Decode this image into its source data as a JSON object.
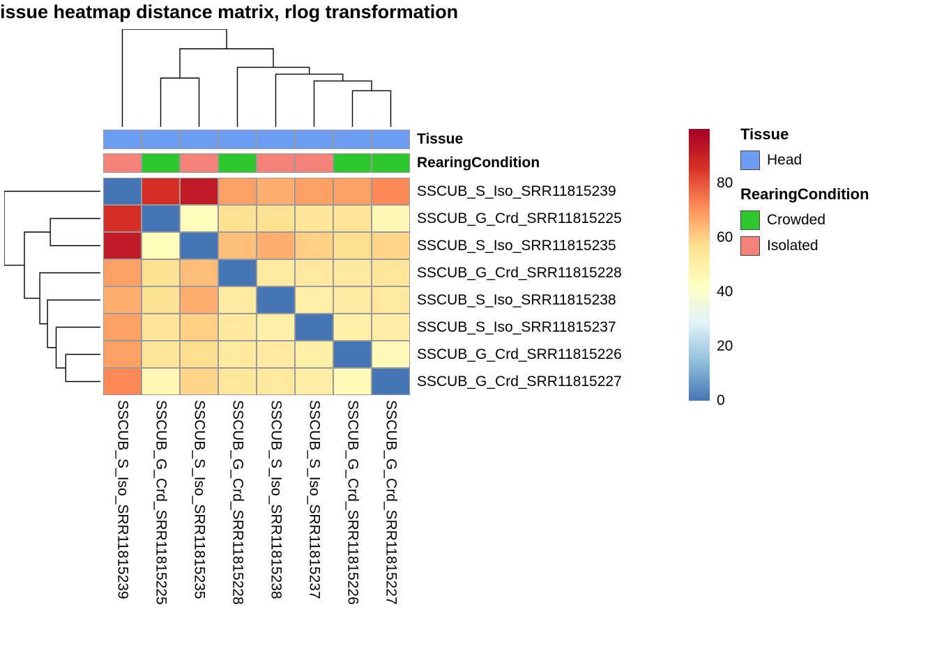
{
  "title": "issue heatmap distance matrix, rlog transformation",
  "chart_data": {
    "type": "heatmap",
    "title": "issue heatmap distance matrix, rlog transformation",
    "columns": [
      "SSCUB_S_Iso_SRR11815239",
      "SSCUB_G_Crd_SRR11815225",
      "SSCUB_S_Iso_SRR11815235",
      "SSCUB_G_Crd_SRR11815228",
      "SSCUB_S_Iso_SRR11815238",
      "SSCUB_S_Iso_SRR11815237",
      "SSCUB_G_Crd_SRR11815226",
      "SSCUB_G_Crd_SRR11815227"
    ],
    "rows": [
      "SSCUB_S_Iso_SRR11815239",
      "SSCUB_G_Crd_SRR11815225",
      "SSCUB_S_Iso_SRR11815235",
      "SSCUB_G_Crd_SRR11815228",
      "SSCUB_S_Iso_SRR11815238",
      "SSCUB_S_Iso_SRR11815237",
      "SSCUB_G_Crd_SRR11815226",
      "SSCUB_G_Crd_SRR11815227"
    ],
    "values": [
      [
        0,
        86,
        92,
        68,
        66,
        68,
        68,
        72
      ],
      [
        86,
        0,
        44,
        56,
        56,
        55,
        55,
        46
      ],
      [
        92,
        44,
        0,
        63,
        66,
        60,
        57,
        59
      ],
      [
        68,
        56,
        63,
        0,
        52,
        53,
        53,
        54
      ],
      [
        66,
        56,
        66,
        52,
        0,
        50,
        52,
        53
      ],
      [
        68,
        55,
        60,
        53,
        50,
        0,
        50,
        51
      ],
      [
        68,
        55,
        57,
        53,
        52,
        50,
        0,
        45
      ],
      [
        72,
        46,
        59,
        54,
        53,
        51,
        45,
        0
      ]
    ],
    "vmin": 0,
    "vmax": 100,
    "colormap": [
      "#4575B4",
      "#91BFDB",
      "#E0F3F8",
      "#FFFFBF",
      "#FEE090",
      "#FC8D59",
      "#D73027",
      "#A50026"
    ],
    "colorbar_ticks": [
      0,
      20,
      40,
      60,
      80
    ],
    "annotations": {
      "tissue": {
        "label": "Tissue",
        "values": [
          "Head",
          "Head",
          "Head",
          "Head",
          "Head",
          "Head",
          "Head",
          "Head"
        ]
      },
      "rearing": {
        "label": "RearingCondition",
        "values": [
          "Isolated",
          "Crowded",
          "Isolated",
          "Crowded",
          "Isolated",
          "Isolated",
          "Crowded",
          "Crowded"
        ]
      }
    },
    "annotation_colors": {
      "Head": "#6D9DF3",
      "Crowded": "#2EC82E",
      "Isolated": "#F58278"
    },
    "col_dendrogram": {
      "h": 1.0,
      "children": [
        {
          "leaf": 0
        },
        {
          "h": 0.8,
          "children": [
            {
              "h": 0.5,
              "children": [
                {
                  "leaf": 1
                },
                {
                  "leaf": 2
                }
              ]
            },
            {
              "h": 0.61,
              "children": [
                {
                  "leaf": 3
                },
                {
                  "h": 0.54,
                  "children": [
                    {
                      "leaf": 4
                    },
                    {
                      "h": 0.47,
                      "children": [
                        {
                          "leaf": 5
                        },
                        {
                          "h": 0.37,
                          "children": [
                            {
                              "leaf": 6
                            },
                            {
                              "leaf": 7
                            }
                          ]
                        }
                      ]
                    }
                  ]
                }
              ]
            }
          ]
        }
      ]
    },
    "row_dendrogram": {
      "h": 1.0,
      "children": [
        {
          "leaf": 0
        },
        {
          "h": 0.79,
          "children": [
            {
              "h": 0.52,
              "children": [
                {
                  "leaf": 1
                },
                {
                  "leaf": 2
                }
              ]
            },
            {
              "h": 0.63,
              "children": [
                {
                  "leaf": 3
                },
                {
                  "h": 0.55,
                  "children": [
                    {
                      "leaf": 4
                    },
                    {
                      "h": 0.46,
                      "children": [
                        {
                          "leaf": 5
                        },
                        {
                          "h": 0.36,
                          "children": [
                            {
                              "leaf": 6
                            },
                            {
                              "leaf": 7
                            }
                          ]
                        }
                      ]
                    }
                  ]
                }
              ]
            }
          ]
        }
      ]
    }
  },
  "legend": {
    "tissue": {
      "title": "Tissue",
      "items": [
        {
          "label": "Head"
        }
      ]
    },
    "rearing": {
      "title": "RearingCondition",
      "items": [
        {
          "label": "Crowded"
        },
        {
          "label": "Isolated"
        }
      ]
    }
  }
}
